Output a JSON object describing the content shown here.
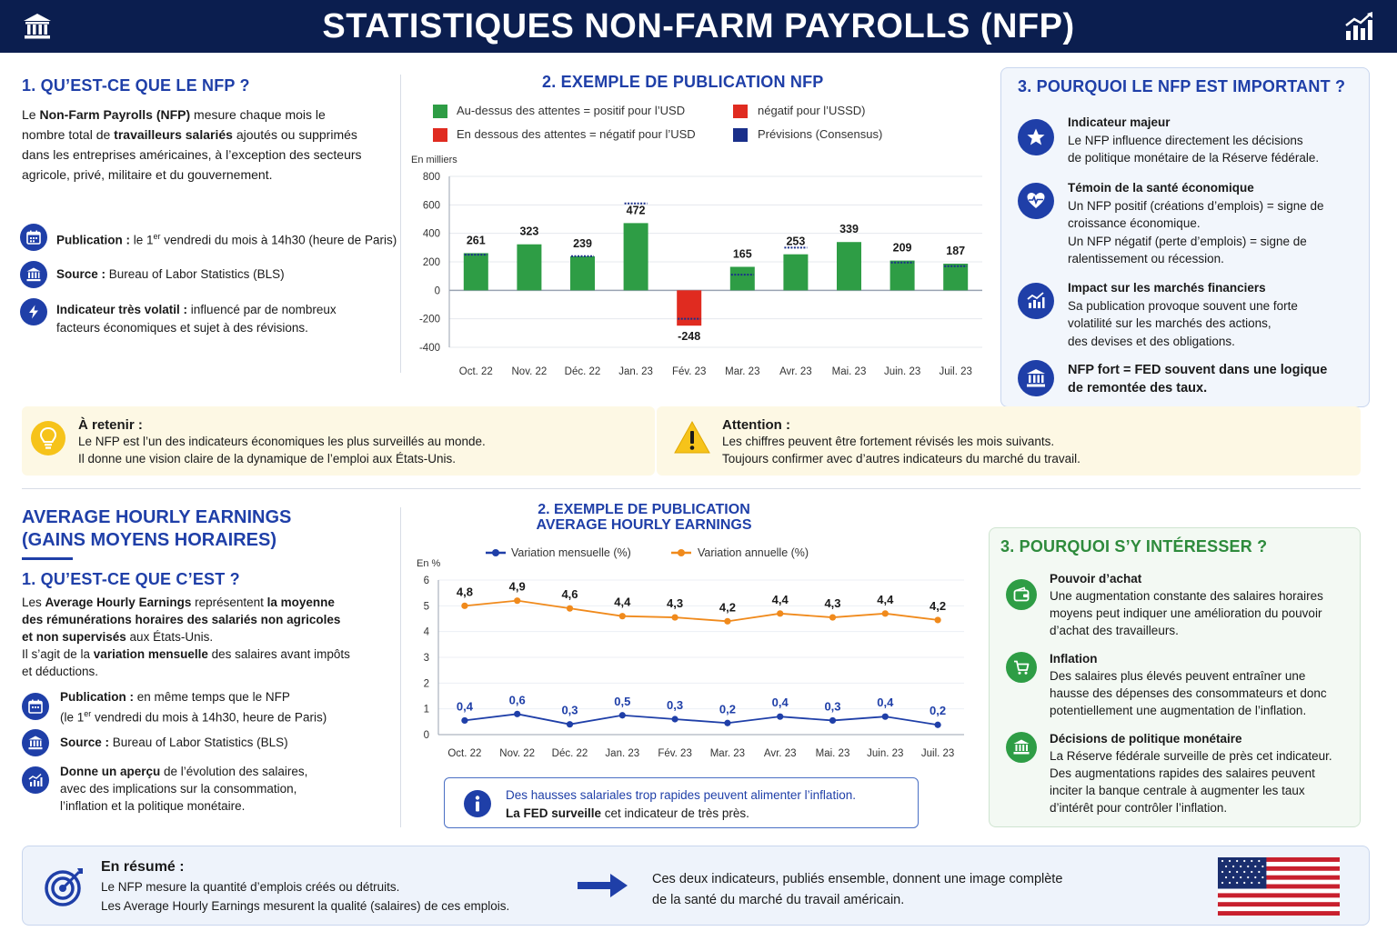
{
  "header": {
    "title": "STATISTIQUES NON-FARM PAYROLLS (NFP)",
    "left_icon": "bank-icon",
    "right_icon": "bar-chart-up-icon"
  },
  "nfp": {
    "what": {
      "title": "1. QU’EST-CE QUE LE NFP ?",
      "p1": "Le ",
      "p1b": "Non-Farm Payrolls (NFP)",
      "p2": " mesure chaque mois le",
      "p3": "nombre total de ",
      "p3b": "travailleurs salariés",
      "p4": " ajoutés ou supprimés",
      "p5": "dans les entreprises américaines, à l’exception des secteurs",
      "p6": "agricole, privé, militaire et du gouvernement."
    },
    "facts": [
      {
        "icon": "calendar-icon",
        "label": "Publication :",
        "text_a": " le 1",
        "sup": "er",
        "text_b": " vendredi du mois à 14h30 (heure de Paris)"
      },
      {
        "icon": "bank-icon",
        "label": "Source :",
        "text": " Bureau of Labor Statistics (BLS)"
      },
      {
        "icon": "lightning-icon",
        "label": "Indicateur très volatil :",
        "text": " influencé par de nombreux",
        "text2": "facteurs économiques et sujet à des révisions."
      }
    ],
    "chart_title": "2. EXEMPLE DE PUBLICATION NFP",
    "legend": [
      {
        "label": "Au-dessus des attentes = positif pour l’USD",
        "color": "#2e9d45"
      },
      {
        "label": "négatif pour l’USSD)",
        "color": "#e02b20"
      },
      {
        "label": "En dessous des attentes = négatif pour l’USD",
        "color": "#e02b20"
      },
      {
        "label": "Prévisions (Consensus)",
        "color": "#1a2f8a"
      }
    ],
    "why": {
      "title": "3. POURQUOI LE NFP EST IMPORTANT ?",
      "items": [
        {
          "icon": "star-icon",
          "title": "Indicateur majeur",
          "lines": [
            "Le NFP influence directement les décisions",
            "de politique monétaire de la Réserve fédérale."
          ]
        },
        {
          "icon": "heart-pulse-icon",
          "title": "Témoin de la santé économique",
          "lines": [
            "Un NFP positif (créations d’emplois) = signe de",
            "croissance économique.",
            "Un NFP négatif (perte d’emplois) = signe de",
            "ralentissement ou récession."
          ]
        },
        {
          "icon": "chart-growth-icon",
          "title": "Impact sur les marchés financiers",
          "lines": [
            "Sa publication provoque souvent une forte",
            "volatilité sur les marchés des actions,",
            "des devises et des obligations."
          ]
        },
        {
          "icon": "bank-icon",
          "title": "NFP fort = FED souvent dans une logique",
          "title2": "de remontée des taux."
        }
      ]
    },
    "notes": [
      {
        "icon": "lightbulb-icon",
        "title": "À retenir :",
        "lines": [
          "Le NFP est l’un des indicateurs économiques les plus surveillés au monde.",
          "Il donne une vision claire de la dynamique de l’emploi aux États-Unis."
        ]
      },
      {
        "icon": "warning-icon",
        "title": "Attention :",
        "lines": [
          "Les chiffres peuvent être fortement révisés les mois suivants.",
          "Toujours confirmer avec d’autres indicateurs du marché du travail."
        ]
      }
    ]
  },
  "ahe": {
    "title1": "AVERAGE HOURLY EARNINGS",
    "title2": "(GAINS MOYENS HORAIRES)",
    "what_title": "1. QU’EST-CE QUE C’EST ?",
    "para": {
      "a": "Les ",
      "b": "Average Hourly Earnings",
      "c": " représentent ",
      "d": "la moyenne",
      "e": "des rémunérations horaires des salariés non agricoles",
      "f": "et non supervisés",
      "g": " aux États-Unis.",
      "h": "Il s’agit de la ",
      "i": "variation mensuelle",
      "j": " des salaires avant impôts",
      "k": "et déductions."
    },
    "facts": [
      {
        "icon": "calendar-icon",
        "label": "Publication :",
        "text": " en même temps que le NFP",
        "line2a": "(le 1",
        "sup": "er",
        "line2b": " vendredi du mois à 14h30, heure de Paris)"
      },
      {
        "icon": "bank-icon",
        "label": "Source :",
        "text": " Bureau of Labor Statistics (BLS)"
      },
      {
        "icon": "chart-growth-icon",
        "label": "Donne un aperçu",
        "text": " de l’évolution des salaires,",
        "text2": "avec des implications sur la consommation,",
        "text3": "l’inflation et la politique monétaire."
      }
    ],
    "chart_title1": "2. EXEMPLE DE PUBLICATION",
    "chart_title2": "AVERAGE HOURLY EARNINGS",
    "legend": [
      {
        "label": "Variation mensuelle (%)",
        "color": "#1f3fa8"
      },
      {
        "label": "Variation annuelle (%)",
        "color": "#f08a1c"
      }
    ],
    "info": {
      "icon": "info-icon",
      "line1": "Des hausses salariales trop rapides peuvent alimenter l’inflation.",
      "line2a": "La FED surveille",
      "line2b": " cet indicateur de très près."
    },
    "why": {
      "title": "3. POURQUOI S’Y INTÉRESSER ?",
      "items": [
        {
          "icon": "wallet-icon",
          "title": "Pouvoir d’achat",
          "lines": [
            "Une augmentation constante des salaires horaires",
            "moyens peut indiquer une amélioration du pouvoir",
            "d’achat des travailleurs."
          ]
        },
        {
          "icon": "cart-icon",
          "title": "Inflation",
          "lines": [
            "Des salaires plus élevés peuvent entraîner une",
            "hausse des dépenses des consommateurs et donc",
            "potentiellement une augmentation de l’inflation."
          ]
        },
        {
          "icon": "bank-icon",
          "title": "Décisions de politique monétaire",
          "lines": [
            "La Réserve fédérale surveille de près cet indicateur.",
            "Des augmentations rapides des salaires peuvent",
            "inciter la banque centrale à augmenter les taux",
            "d’intérêt pour contrôler l’inflation."
          ]
        }
      ]
    }
  },
  "summary": {
    "icon": "target-icon",
    "title": "En résumé :",
    "line1": "Le NFP mesure la quantité d’emplois créés ou détruits.",
    "line2": "Les Average Hourly Earnings mesurent la qualité (salaires) de ces emplois.",
    "arrow_icon": "arrow-right-icon",
    "right1": "Ces deux indicateurs, publiés ensemble, donnent une image complète",
    "right2": "de la santé du marché du travail américain.",
    "flag_icon": "us-flag-icon"
  },
  "chart_data": [
    {
      "type": "bar",
      "ylabel": "En milliers",
      "categories": [
        "Oct. 22",
        "Nov. 22",
        "Déc. 22",
        "Jan. 23",
        "Fév. 23",
        "Mar. 23",
        "Avr. 23",
        "Mai. 23",
        "Juin. 23",
        "Juil. 23"
      ],
      "values": [
        261,
        323,
        239,
        472,
        -248,
        165,
        253,
        339,
        209,
        187
      ],
      "labels": [
        "261",
        "323",
        "239",
        "472",
        "-248",
        "165",
        "253",
        "339",
        "209",
        "187"
      ],
      "forecast": [
        250,
        null,
        240,
        610,
        -200,
        110,
        300,
        null,
        195,
        170
      ],
      "ylim": [
        -400,
        800
      ],
      "yticks": [
        "800",
        "600",
        "400",
        "200",
        "0",
        "-200",
        "-400"
      ],
      "grid": true
    },
    {
      "type": "line",
      "ylabel": "En %",
      "categories": [
        "Oct. 22",
        "Nov. 22",
        "Déc. 22",
        "Jan. 23",
        "Fév. 23",
        "Mar. 23",
        "Avr. 23",
        "Mai. 23",
        "Juin. 23",
        "Juil. 23"
      ],
      "series": [
        {
          "name": "Variation annuelle (%)",
          "values": [
            4.8,
            4.9,
            4.6,
            4.4,
            4.3,
            4.2,
            4.4,
            4.3,
            4.4,
            4.2
          ],
          "labels": [
            "4,8",
            "4,9",
            "4,6",
            "4,4",
            "4,3",
            "4,2",
            "4,4",
            "4,3",
            "4,4",
            "4,2"
          ],
          "plot": [
            5.0,
            5.2,
            4.9,
            4.6,
            4.55,
            4.4,
            4.7,
            4.55,
            4.7,
            4.45
          ]
        },
        {
          "name": "Variation mensuelle (%)",
          "values": [
            0.4,
            0.6,
            0.3,
            0.5,
            0.3,
            0.2,
            0.4,
            0.3,
            0.4,
            0.2
          ],
          "labels": [
            "0,4",
            "0,6",
            "0,3",
            "0,5",
            "0,3",
            "0,2",
            "0,4",
            "0,3",
            "0,4",
            "0,2"
          ],
          "plot": [
            0.55,
            0.8,
            0.4,
            0.75,
            0.6,
            0.45,
            0.7,
            0.55,
            0.7,
            0.38
          ]
        }
      ],
      "ylim": [
        0,
        6
      ],
      "yticks": [
        "6",
        "5",
        "4",
        "3",
        "2",
        "1",
        "0"
      ],
      "grid": true
    }
  ]
}
